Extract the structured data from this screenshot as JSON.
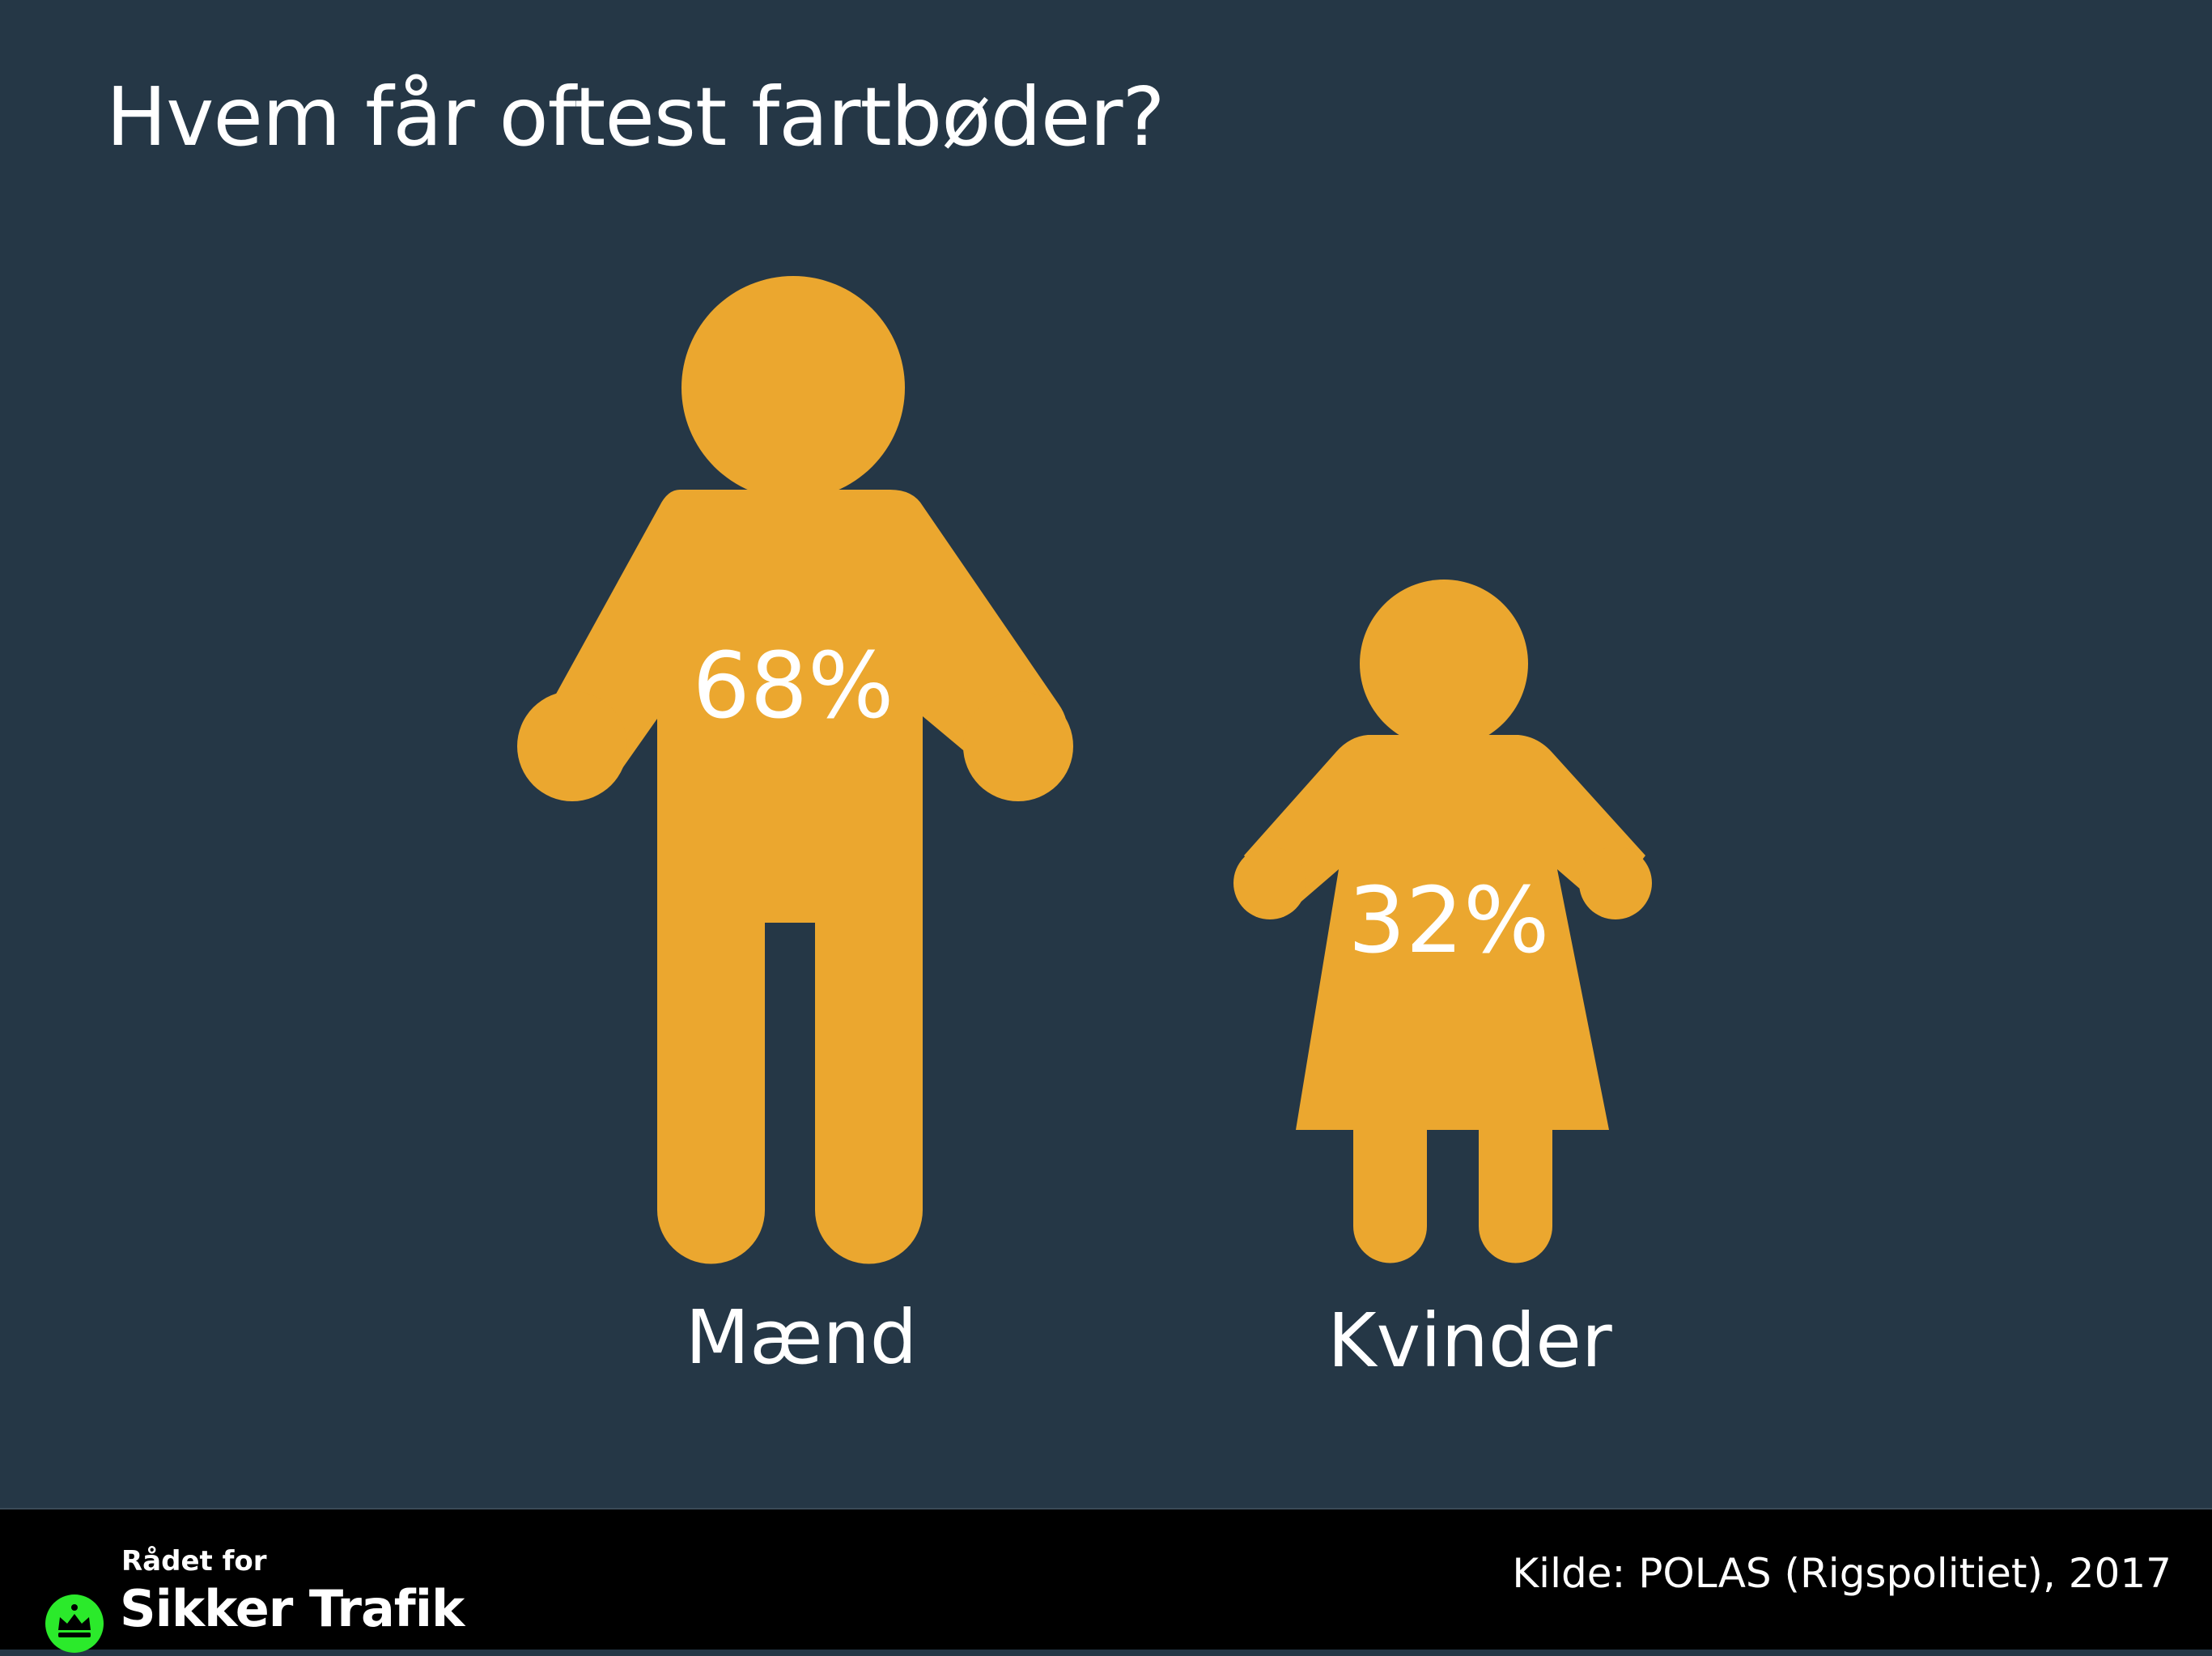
{
  "title": "Hvem får oftest fartbøder?",
  "colors": {
    "background": "#253746",
    "figure": "#EBA72F",
    "text": "#FFFFFF",
    "footer": "#000000",
    "logo_accent": "#2BEA2B"
  },
  "chart_data": {
    "type": "pictogram",
    "unit": "%",
    "categories": [
      "Mænd",
      "Kvinder"
    ],
    "values": [
      68,
      32
    ],
    "value_labels": [
      "68%",
      "32%"
    ],
    "icons": [
      "man-icon",
      "woman-icon"
    ]
  },
  "footer": {
    "logo_top": "Rådet for",
    "logo_main": "Sikker Trafik",
    "logo_icon": "crown-icon",
    "source": "Kilde: POLAS (Rigspolitiet), 2017"
  }
}
